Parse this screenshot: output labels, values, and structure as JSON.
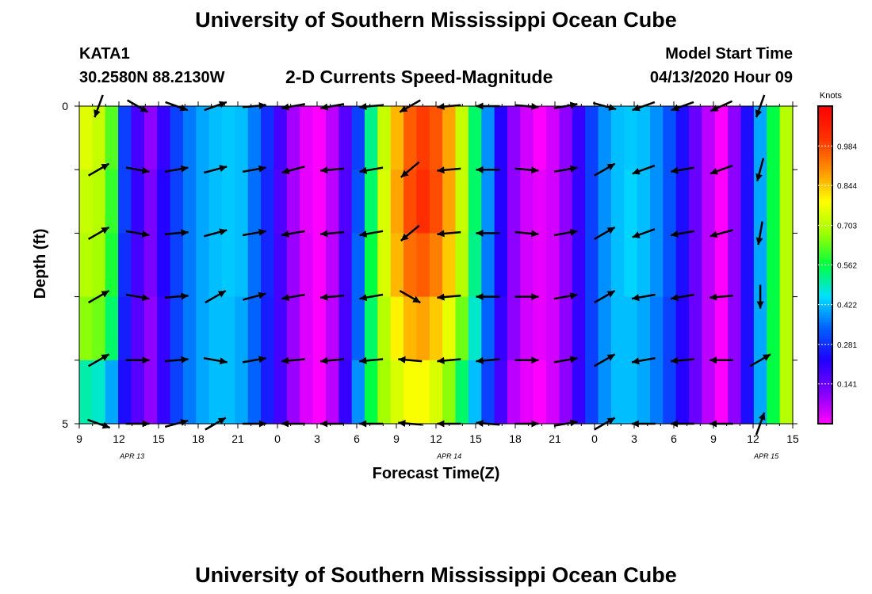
{
  "header": {
    "title": "University of Southern Mississippi Ocean Cube",
    "station": "KATA1",
    "coords": "30.2580N 88.2130W",
    "subtitle": "2-D Currents Speed-Magnitude",
    "model_start_label": "Model Start Time",
    "model_start_value": "04/13/2020 Hour 09"
  },
  "footer": {
    "title": "University of Southern Mississippi Ocean Cube"
  },
  "colors": {
    "palette": [
      "#ff00ff",
      "#8000ff",
      "#2000ff",
      "#0060ff",
      "#00e0ff",
      "#00ff40",
      "#a0ff00",
      "#ffff00",
      "#ff9000",
      "#ff3000",
      "#ff0000"
    ],
    "arrow": "#000000",
    "frame": "#000000"
  },
  "chart_data": {
    "type": "heatmap",
    "title": "2-D Currents Speed-Magnitude",
    "xlabel": "Forecast Time(Z)",
    "ylabel": "Depth (ft)",
    "y_ticks": [
      "0",
      "5"
    ],
    "ylim": [
      0,
      5
    ],
    "x_ticks": [
      "9",
      "12",
      "15",
      "18",
      "21",
      "0",
      "3",
      "6",
      "9",
      "12",
      "15",
      "18",
      "21",
      "0",
      "3",
      "6",
      "9",
      "12",
      "15"
    ],
    "date_labels": [
      {
        "text": "APR 13",
        "hour_index": 4
      },
      {
        "text": "APR 14",
        "hour_index": 28
      },
      {
        "text": "APR 15",
        "hour_index": 52
      }
    ],
    "colorbar": {
      "label": "Knots",
      "ticks": [
        "0.141",
        "0.281",
        "0.422",
        "0.562",
        "0.703",
        "0.844",
        "0.984"
      ],
      "vmin": 0,
      "vmax": 1.125
    },
    "depth_rows": 5,
    "hours": 55,
    "speed_knots": [
      [
        0.75,
        0.72,
        0.62,
        0.3,
        0.18,
        0.1,
        0.2,
        0.3,
        0.36,
        0.4,
        0.42,
        0.43,
        0.42,
        0.36,
        0.28,
        0.18,
        0.08,
        0.02,
        0.0,
        0.06,
        0.16,
        0.3,
        0.52,
        0.72,
        0.86,
        0.96,
        1.0,
        0.97,
        0.88,
        0.72,
        0.54,
        0.38,
        0.22,
        0.1,
        0.04,
        0.0,
        0.04,
        0.1,
        0.2,
        0.3,
        0.38,
        0.42,
        0.43,
        0.42,
        0.38,
        0.32,
        0.24,
        0.14,
        0.06,
        0.0,
        0.1,
        0.24,
        0.4,
        0.56,
        0.7
      ],
      [
        0.72,
        0.7,
        0.6,
        0.3,
        0.2,
        0.12,
        0.22,
        0.3,
        0.36,
        0.4,
        0.42,
        0.43,
        0.42,
        0.35,
        0.27,
        0.17,
        0.08,
        0.02,
        0.0,
        0.06,
        0.17,
        0.32,
        0.54,
        0.74,
        0.88,
        0.98,
        1.02,
        0.98,
        0.88,
        0.72,
        0.54,
        0.38,
        0.22,
        0.1,
        0.04,
        0.02,
        0.04,
        0.1,
        0.2,
        0.3,
        0.38,
        0.42,
        0.44,
        0.42,
        0.38,
        0.32,
        0.24,
        0.14,
        0.06,
        0.0,
        0.1,
        0.24,
        0.4,
        0.56,
        0.7
      ],
      [
        0.7,
        0.68,
        0.58,
        0.28,
        0.18,
        0.12,
        0.22,
        0.3,
        0.36,
        0.4,
        0.42,
        0.43,
        0.42,
        0.35,
        0.27,
        0.18,
        0.09,
        0.03,
        0.0,
        0.06,
        0.18,
        0.34,
        0.56,
        0.74,
        0.86,
        0.94,
        0.96,
        0.92,
        0.84,
        0.7,
        0.52,
        0.36,
        0.22,
        0.1,
        0.04,
        0.02,
        0.04,
        0.1,
        0.2,
        0.3,
        0.38,
        0.42,
        0.44,
        0.42,
        0.38,
        0.32,
        0.24,
        0.14,
        0.06,
        0.0,
        0.1,
        0.24,
        0.4,
        0.56,
        0.7
      ],
      [
        0.66,
        0.64,
        0.54,
        0.26,
        0.16,
        0.1,
        0.2,
        0.3,
        0.36,
        0.4,
        0.42,
        0.42,
        0.4,
        0.34,
        0.26,
        0.18,
        0.09,
        0.03,
        0.0,
        0.06,
        0.18,
        0.34,
        0.54,
        0.7,
        0.8,
        0.86,
        0.88,
        0.84,
        0.76,
        0.64,
        0.48,
        0.34,
        0.2,
        0.1,
        0.04,
        0.02,
        0.04,
        0.1,
        0.2,
        0.3,
        0.38,
        0.42,
        0.42,
        0.4,
        0.36,
        0.3,
        0.22,
        0.14,
        0.06,
        0.0,
        0.1,
        0.24,
        0.4,
        0.56,
        0.7
      ],
      [
        0.5,
        0.48,
        0.4,
        0.24,
        0.16,
        0.1,
        0.2,
        0.3,
        0.36,
        0.4,
        0.42,
        0.42,
        0.4,
        0.34,
        0.26,
        0.18,
        0.09,
        0.03,
        0.0,
        0.06,
        0.2,
        0.38,
        0.56,
        0.68,
        0.74,
        0.78,
        0.78,
        0.74,
        0.66,
        0.54,
        0.42,
        0.3,
        0.18,
        0.06,
        0.02,
        0.0,
        0.04,
        0.1,
        0.2,
        0.3,
        0.38,
        0.42,
        0.42,
        0.4,
        0.36,
        0.3,
        0.22,
        0.14,
        0.06,
        0.0,
        0.1,
        0.24,
        0.4,
        0.56,
        0.7
      ]
    ],
    "arrow_depths": [
      0,
      1,
      2,
      3,
      4,
      5
    ],
    "arrow_columns": [
      {
        "hour": 1,
        "dir": [
          200,
          60,
          60,
          60,
          60,
          110
        ]
      },
      {
        "hour": 4,
        "dir": [
          120,
          100,
          100,
          100,
          90,
          90
        ]
      },
      {
        "hour": 7,
        "dir": [
          110,
          80,
          85,
          85,
          85,
          75
        ]
      },
      {
        "hour": 10,
        "dir": [
          70,
          75,
          75,
          60,
          100,
          60
        ]
      },
      {
        "hour": 13,
        "dir": [
          85,
          80,
          80,
          75,
          80,
          90
        ]
      },
      {
        "hour": 16,
        "dir": [
          260,
          255,
          260,
          260,
          265,
          270
        ]
      },
      {
        "hour": 19,
        "dir": [
          260,
          265,
          265,
          265,
          265,
          270
        ]
      },
      {
        "hour": 22,
        "dir": [
          265,
          260,
          260,
          260,
          265,
          270
        ]
      },
      {
        "hour": 25,
        "dir": [
          240,
          230,
          230,
          120,
          275,
          275
        ]
      },
      {
        "hour": 28,
        "dir": [
          265,
          265,
          265,
          265,
          265,
          270
        ]
      },
      {
        "hour": 31,
        "dir": [
          270,
          270,
          270,
          270,
          265,
          275
        ]
      },
      {
        "hour": 34,
        "dir": [
          95,
          95,
          95,
          90,
          90,
          90
        ]
      },
      {
        "hour": 37,
        "dir": [
          80,
          80,
          80,
          80,
          80,
          80
        ]
      },
      {
        "hour": 40,
        "dir": [
          105,
          60,
          60,
          60,
          60,
          60
        ]
      },
      {
        "hour": 43,
        "dir": [
          250,
          250,
          250,
          260,
          260,
          270
        ]
      },
      {
        "hour": 46,
        "dir": [
          250,
          260,
          260,
          260,
          265,
          270
        ]
      },
      {
        "hour": 49,
        "dir": [
          245,
          250,
          255,
          265,
          270,
          270
        ]
      },
      {
        "hour": 52,
        "dir": [
          200,
          195,
          190,
          180,
          60,
          20
        ]
      }
    ]
  }
}
